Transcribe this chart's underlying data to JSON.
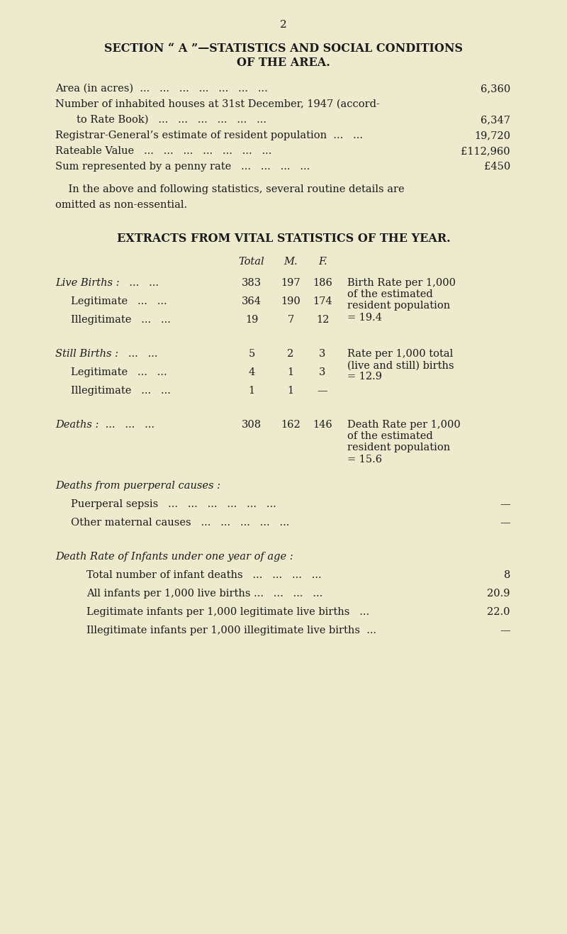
{
  "bg_color": "#edeace",
  "text_color": "#1a1a1a",
  "page_number": "2",
  "section_title_line1": "SECTION “ A ”—STATISTICS AND SOCIAL CONDITIONS",
  "section_title_line2": "OF THE AREA.",
  "note": "    In the above and following statistics, several routine details are\nomitted as non-essential.",
  "extracts_title": "EXTRACTS FROM VITAL STATISTICS OF THE YEAR.",
  "live_births_note": "Birth Rate per 1,000\nof the estimated\nresident population\n= 19.4",
  "still_births_note": "Rate per 1,000 total\n(live and still) births\n= 12.9",
  "deaths_note": "Death Rate per 1,000\nof the estimated\nresident population\n= 15.6"
}
